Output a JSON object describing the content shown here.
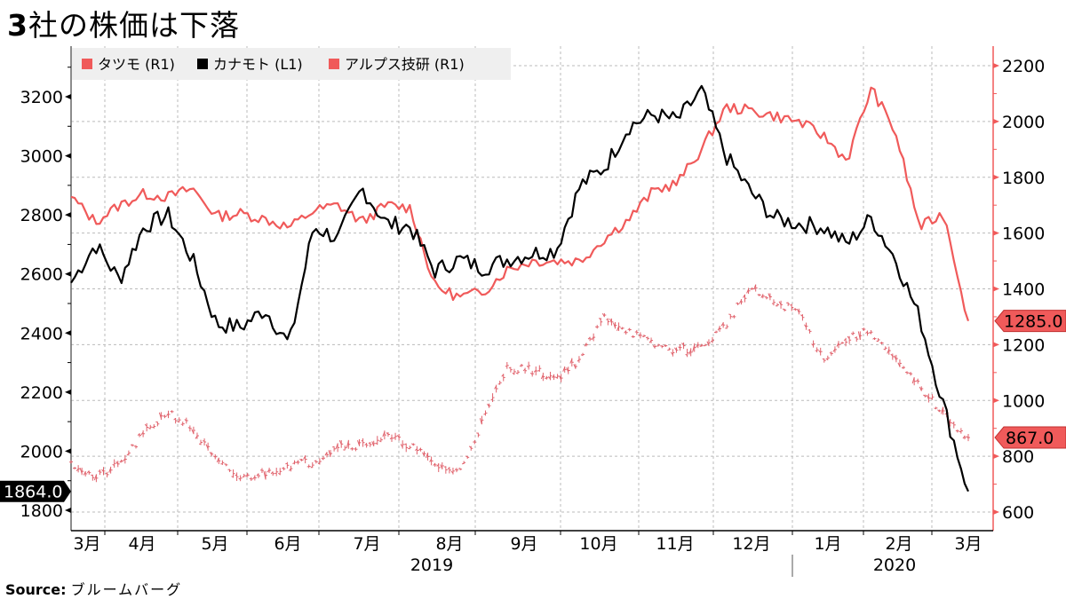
{
  "title": {
    "prefix": "3",
    "text": "社の株価は下落"
  },
  "source": {
    "label": "Source:",
    "value": "ブルームバーグ"
  },
  "colors": {
    "red": "#f05a5a",
    "black": "#000000",
    "grid": "#bbbbbb",
    "legend_bg": "#efefef"
  },
  "legend": [
    {
      "label": "タツモ (R1)",
      "color": "#f05a5a"
    },
    {
      "label": "カナモト (L1)",
      "color": "#000000"
    },
    {
      "label": "アルプス技研 (R1)",
      "color": "#f05a5a"
    }
  ],
  "last_values": {
    "kanamoto": "1864.0",
    "alps": "1285.0",
    "tatsumo": "867.0"
  },
  "chart_data": {
    "type": "line",
    "title": "3社の株価は下落",
    "source": "ブルームバーグ",
    "x_ticks": [
      "3月",
      "4月",
      "5月",
      "6月",
      "7月",
      "8月",
      "9月",
      "10月",
      "11月",
      "12月",
      "1月",
      "2月",
      "3月"
    ],
    "year_labels": [
      {
        "label": "2019",
        "under": "8月"
      },
      {
        "label": "2020",
        "under": "2月"
      }
    ],
    "left_axis": {
      "label": "L1",
      "ticks": [
        1800,
        2000,
        2200,
        2400,
        2600,
        2800,
        3000,
        3200
      ],
      "ylim": [
        1740,
        3270
      ]
    },
    "right_axis": {
      "label": "R1",
      "ticks": [
        600,
        800,
        1000,
        1200,
        1400,
        1600,
        1800,
        2000,
        2200
      ],
      "ylim": [
        530,
        2270
      ]
    },
    "grid": true,
    "legend_position": "top-left",
    "series": [
      {
        "name": "カナモト",
        "axis": "L1",
        "color": "#000000",
        "style": "line",
        "last": 1864.0,
        "points": [
          [
            "3月上",
            2570
          ],
          [
            "3月中",
            2700
          ],
          [
            "3月下",
            2580
          ],
          [
            "4月上",
            2760
          ],
          [
            "4月中",
            2800
          ],
          [
            "4月下",
            2650
          ],
          [
            "5月上",
            2430
          ],
          [
            "5月中",
            2420
          ],
          [
            "5月下",
            2480
          ],
          [
            "6月上",
            2360
          ],
          [
            "6月中",
            2760
          ],
          [
            "6月下",
            2720
          ],
          [
            "7月上",
            2890
          ],
          [
            "7月中",
            2770
          ],
          [
            "7月下",
            2760
          ],
          [
            "8月上",
            2610
          ],
          [
            "8月中",
            2650
          ],
          [
            "8月下",
            2620
          ],
          [
            "9月上",
            2650
          ],
          [
            "9月中",
            2670
          ],
          [
            "9月下",
            2680
          ],
          [
            "10月上",
            2900
          ],
          [
            "10月中",
            2960
          ],
          [
            "10月下",
            3100
          ],
          [
            "11月上",
            3140
          ],
          [
            "11月中",
            3120
          ],
          [
            "11月下",
            3220
          ],
          [
            "12月上",
            3000
          ],
          [
            "12月中",
            2880
          ],
          [
            "12月下",
            2790
          ],
          [
            "1月上",
            2770
          ],
          [
            "1月中",
            2760
          ],
          [
            "1月下",
            2700
          ],
          [
            "2月上",
            2790
          ],
          [
            "2月中",
            2650
          ],
          [
            "2月下",
            2450
          ],
          [
            "3月上",
            2150
          ],
          [
            "3月中",
            1864
          ]
        ]
      },
      {
        "name": "アルプス技研",
        "axis": "R1",
        "color": "#f05a5a",
        "style": "line",
        "last": 1285.0,
        "points": [
          [
            "3月上",
            1730
          ],
          [
            "3月中",
            1640
          ],
          [
            "3月下",
            1700
          ],
          [
            "4月上",
            1740
          ],
          [
            "4月中",
            1730
          ],
          [
            "4月下",
            1760
          ],
          [
            "5月上",
            1660
          ],
          [
            "5月中",
            1670
          ],
          [
            "5月下",
            1650
          ],
          [
            "6月上",
            1620
          ],
          [
            "6月中",
            1680
          ],
          [
            "6月下",
            1700
          ],
          [
            "7月上",
            1640
          ],
          [
            "7月中",
            1700
          ],
          [
            "7月下",
            1690
          ],
          [
            "8月上",
            1410
          ],
          [
            "8月中",
            1370
          ],
          [
            "8月下",
            1390
          ],
          [
            "9月上",
            1470
          ],
          [
            "9月中",
            1500
          ],
          [
            "9月下",
            1500
          ],
          [
            "10月上",
            1500
          ],
          [
            "10月中",
            1580
          ],
          [
            "10月下",
            1650
          ],
          [
            "11月上",
            1750
          ],
          [
            "11月中",
            1780
          ],
          [
            "11月下",
            1900
          ],
          [
            "12月上",
            2050
          ],
          [
            "12月中",
            2040
          ],
          [
            "12月下",
            2020
          ],
          [
            "1月上",
            2000
          ],
          [
            "1月中",
            1950
          ],
          [
            "1月下",
            1860
          ],
          [
            "2月上",
            2120
          ],
          [
            "2月中",
            1960
          ],
          [
            "2月下",
            1620
          ],
          [
            "3月上",
            1670
          ],
          [
            "3月中",
            1285
          ]
        ]
      },
      {
        "name": "タツモ",
        "axis": "R1",
        "color": "#f05a5a",
        "style": "ohlc",
        "last": 867.0,
        "points": [
          [
            "3月上",
            780
          ],
          [
            "3月中",
            720
          ],
          [
            "3月下",
            770
          ],
          [
            "4月上",
            880
          ],
          [
            "4月中",
            960
          ],
          [
            "4月下",
            900
          ],
          [
            "5月上",
            780
          ],
          [
            "5月中",
            720
          ],
          [
            "5月下",
            740
          ],
          [
            "6月上",
            770
          ],
          [
            "6月中",
            780
          ],
          [
            "6月下",
            840
          ],
          [
            "7月上",
            840
          ],
          [
            "7月中",
            870
          ],
          [
            "7月下",
            840
          ],
          [
            "8月上",
            770
          ],
          [
            "8月中",
            740
          ],
          [
            "8月下",
            930
          ],
          [
            "9月上",
            1120
          ],
          [
            "9月中",
            1110
          ],
          [
            "9月下",
            1080
          ],
          [
            "10月上",
            1150
          ],
          [
            "10月中",
            1300
          ],
          [
            "10月下",
            1250
          ],
          [
            "11月上",
            1200
          ],
          [
            "11月中",
            1180
          ],
          [
            "11月下",
            1190
          ],
          [
            "12月上",
            1270
          ],
          [
            "12月中",
            1400
          ],
          [
            "12月下",
            1350
          ],
          [
            "1月上",
            1320
          ],
          [
            "1月中",
            1150
          ],
          [
            "1月下",
            1220
          ],
          [
            "2月上",
            1250
          ],
          [
            "2月中",
            1140
          ],
          [
            "2月下",
            1050
          ],
          [
            "3月上",
            950
          ],
          [
            "3月中",
            867
          ]
        ]
      }
    ]
  }
}
